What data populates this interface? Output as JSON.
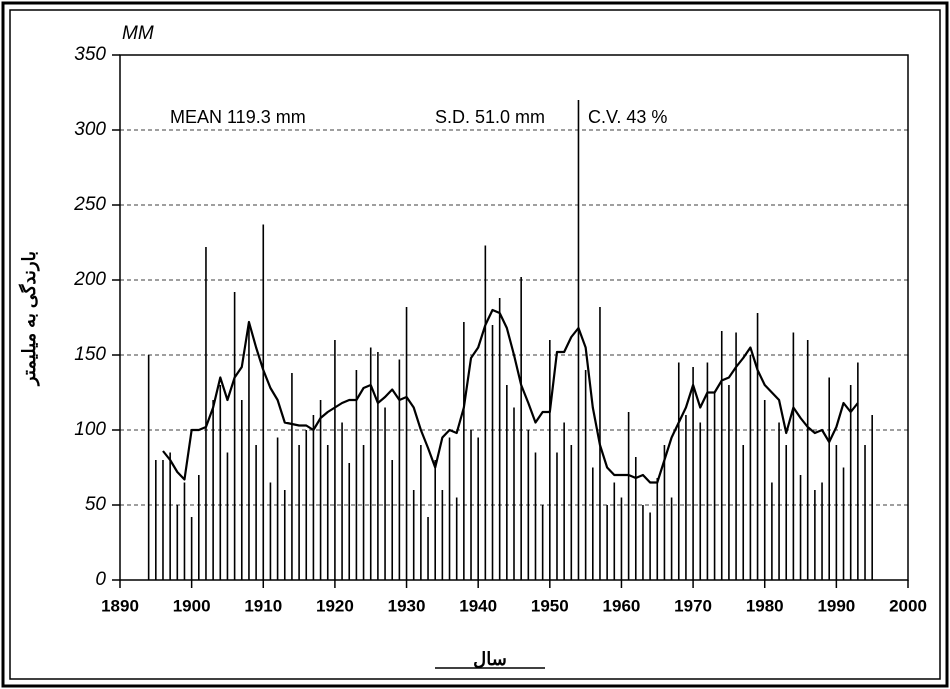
{
  "chart_data": {
    "type": "bar_line",
    "y_unit": "MM",
    "y_label": "بارندگی به میلیمتر",
    "x_label": "سال",
    "annotations": [
      "MEAN   119.3 mm",
      "S.D.  51.0 mm",
      "C.V.  43 %"
    ],
    "x": [
      1894,
      1895,
      1896,
      1897,
      1898,
      1899,
      1900,
      1901,
      1902,
      1903,
      1904,
      1905,
      1906,
      1907,
      1908,
      1909,
      1910,
      1911,
      1912,
      1913,
      1914,
      1915,
      1916,
      1917,
      1918,
      1919,
      1920,
      1921,
      1922,
      1923,
      1924,
      1925,
      1926,
      1927,
      1928,
      1929,
      1930,
      1931,
      1932,
      1933,
      1934,
      1935,
      1936,
      1937,
      1938,
      1939,
      1940,
      1941,
      1942,
      1943,
      1944,
      1945,
      1946,
      1947,
      1948,
      1949,
      1950,
      1951,
      1952,
      1953,
      1954,
      1955,
      1956,
      1957,
      1958,
      1959,
      1960,
      1961,
      1962,
      1963,
      1964,
      1965,
      1966,
      1967,
      1968,
      1969,
      1970,
      1971,
      1972,
      1973,
      1974,
      1975,
      1976,
      1977,
      1978,
      1979,
      1980,
      1981,
      1982,
      1983,
      1984,
      1985,
      1986,
      1987,
      1988,
      1989,
      1990,
      1991,
      1992,
      1993,
      1994,
      1995
    ],
    "series": [
      {
        "kind": "bar",
        "color": "#000000",
        "values": [
          150,
          80,
          80,
          85,
          50,
          65,
          42,
          70,
          222,
          120,
          130,
          85,
          192,
          120,
          170,
          90,
          237,
          65,
          95,
          60,
          138,
          90,
          100,
          110,
          120,
          90,
          160,
          105,
          78,
          140,
          90,
          155,
          152,
          115,
          80,
          147,
          182,
          60,
          90,
          42,
          80,
          60,
          95,
          55,
          172,
          100,
          95,
          223,
          170,
          188,
          130,
          115,
          202,
          100,
          85,
          50,
          160,
          85,
          105,
          90,
          320,
          140,
          75,
          182,
          50,
          65,
          55,
          112,
          82,
          50,
          45,
          68,
          90,
          55,
          145,
          110,
          142,
          105,
          145,
          125,
          166,
          130,
          165,
          90,
          150,
          178,
          120,
          65,
          105,
          90,
          165,
          70,
          160,
          60,
          65,
          135,
          90,
          75,
          130,
          145,
          90,
          110
        ]
      },
      {
        "kind": "line",
        "color": "#000000",
        "values": [
          null,
          null,
          86,
          80,
          72,
          67,
          100,
          100,
          102,
          115,
          135,
          120,
          135,
          142,
          172,
          155,
          140,
          128,
          120,
          105,
          104,
          103,
          103,
          100,
          108,
          112,
          115,
          118,
          120,
          120,
          128,
          130,
          118,
          122,
          127,
          120,
          122,
          115,
          100,
          88,
          75,
          95,
          100,
          98,
          115,
          148,
          155,
          170,
          180,
          178,
          168,
          150,
          130,
          118,
          105,
          112,
          112,
          152,
          152,
          162,
          168,
          155,
          115,
          90,
          75,
          70,
          70,
          70,
          68,
          70,
          65,
          65,
          80,
          95,
          105,
          115,
          130,
          115,
          125,
          125,
          133,
          135,
          142,
          148,
          155,
          140,
          130,
          125,
          120,
          98,
          115,
          108,
          102,
          98,
          100,
          92,
          102,
          118,
          112,
          118,
          null,
          null
        ]
      }
    ],
    "xlim": [
      1890,
      2000
    ],
    "xticks": [
      1890,
      1900,
      1910,
      1920,
      1930,
      1940,
      1950,
      1960,
      1970,
      1980,
      1990,
      2000
    ],
    "ylim": [
      0,
      350
    ],
    "yticks": [
      0,
      50,
      100,
      150,
      200,
      250,
      300,
      350
    ],
    "grid": true
  }
}
